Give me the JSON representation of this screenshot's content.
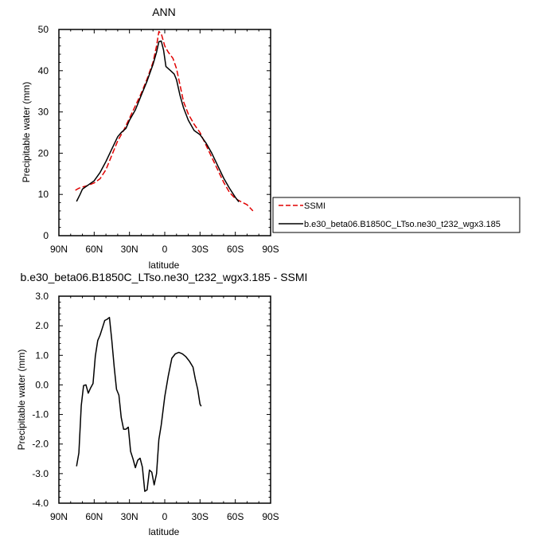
{
  "chart_data": [
    {
      "type": "line",
      "title": "ANN",
      "xlabel": "latitude",
      "ylabel": "Precipitable water (mm)",
      "xlim": [
        -90,
        90
      ],
      "ylim": [
        0,
        50
      ],
      "x_ticks": [
        -90,
        -60,
        -30,
        0,
        30,
        60,
        90
      ],
      "x_tick_labels": [
        "90N",
        "60N",
        "30N",
        "0",
        "30S",
        "60S",
        "90S"
      ],
      "y_ticks": [
        0,
        10,
        20,
        30,
        40,
        50
      ],
      "y_tick_labels": [
        "0",
        "10",
        "20",
        "30",
        "40",
        "50"
      ],
      "legend_position": "right",
      "series": [
        {
          "name": "SSMI",
          "color": "#e00000",
          "dash": "dashed",
          "points": [
            [
              -76,
              11
            ],
            [
              -73,
              11.5
            ],
            [
              -70,
              11.8
            ],
            [
              -65,
              12.2
            ],
            [
              -60,
              12.8
            ],
            [
              -55,
              13.8
            ],
            [
              -50,
              16
            ],
            [
              -45,
              19.5
            ],
            [
              -40,
              23
            ],
            [
              -35,
              25.5
            ],
            [
              -30,
              28.5
            ],
            [
              -25,
              31.5
            ],
            [
              -20,
              34.5
            ],
            [
              -15,
              38
            ],
            [
              -10,
              42
            ],
            [
              -7,
              46
            ],
            [
              -5,
              49.5
            ],
            [
              -3,
              49
            ],
            [
              0,
              46
            ],
            [
              3,
              44.5
            ],
            [
              7,
              43
            ],
            [
              10,
              40.5
            ],
            [
              13,
              36.5
            ],
            [
              16,
              32.5
            ],
            [
              20,
              29.5
            ],
            [
              25,
              27
            ],
            [
              30,
              25
            ],
            [
              35,
              22
            ],
            [
              40,
              19
            ],
            [
              45,
              16
            ],
            [
              50,
              13
            ],
            [
              55,
              10.5
            ],
            [
              60,
              9
            ],
            [
              65,
              8.2
            ],
            [
              70,
              7.5
            ],
            [
              75,
              6
            ]
          ]
        },
        {
          "name": "b.e30_beta06.B1850C_LTso.ne30_t232_wgx3.185",
          "color": "#000000",
          "dash": "solid",
          "points": [
            [
              -75,
              8.3
            ],
            [
              -72,
              10
            ],
            [
              -70,
              11.3
            ],
            [
              -65,
              12.3
            ],
            [
              -60,
              13.3
            ],
            [
              -55,
              15.3
            ],
            [
              -50,
              18
            ],
            [
              -45,
              21
            ],
            [
              -40,
              24
            ],
            [
              -37,
              25
            ],
            [
              -33,
              26
            ],
            [
              -30,
              28
            ],
            [
              -25,
              30.5
            ],
            [
              -20,
              34
            ],
            [
              -15,
              37.5
            ],
            [
              -10,
              41.5
            ],
            [
              -7,
              44.5
            ],
            [
              -5,
              47
            ],
            [
              -3,
              47.2
            ],
            [
              -1,
              45
            ],
            [
              1,
              41
            ],
            [
              5,
              40
            ],
            [
              8,
              39.2
            ],
            [
              10,
              37.8
            ],
            [
              13,
              34
            ],
            [
              16,
              31
            ],
            [
              20,
              28
            ],
            [
              25,
              25.5
            ],
            [
              30,
              24.5
            ],
            [
              35,
              22.5
            ],
            [
              40,
              20
            ],
            [
              45,
              17
            ],
            [
              50,
              14
            ],
            [
              55,
              11.5
            ],
            [
              60,
              9.3
            ],
            [
              63,
              8.2
            ]
          ]
        }
      ]
    },
    {
      "type": "line",
      "title": "b.e30_beta06.B1850C_LTso.ne30_t232_wgx3.185 - SSMI",
      "xlabel": "latitude",
      "ylabel": "Precipitable water (mm)",
      "xlim": [
        -90,
        90
      ],
      "ylim": [
        -4,
        3
      ],
      "x_ticks": [
        -90,
        -60,
        -30,
        0,
        30,
        60,
        90
      ],
      "x_tick_labels": [
        "90N",
        "60N",
        "30N",
        "0",
        "30S",
        "60S",
        "90S"
      ],
      "y_ticks": [
        -4,
        -3,
        -2,
        -1,
        0,
        1,
        2,
        3
      ],
      "y_tick_labels": [
        "-4.0",
        "-3.0",
        "-2.0",
        "-1.0",
        "0.0",
        "1.0",
        "2.0",
        "3.0"
      ],
      "series": [
        {
          "color": "#000000",
          "dash": "solid",
          "points": [
            [
              -75,
              -2.75
            ],
            [
              -73,
              -2.3
            ],
            [
              -71,
              -0.7
            ],
            [
              -69,
              -0.02
            ],
            [
              -67,
              0.0
            ],
            [
              -65,
              -0.28
            ],
            [
              -63,
              -0.1
            ],
            [
              -61,
              0.05
            ],
            [
              -59,
              0.98
            ],
            [
              -57,
              1.5
            ],
            [
              -55,
              1.68
            ],
            [
              -53,
              1.93
            ],
            [
              -51,
              2.18
            ],
            [
              -49,
              2.22
            ],
            [
              -47,
              2.28
            ],
            [
              -45,
              1.5
            ],
            [
              -43,
              0.6
            ],
            [
              -41,
              -0.15
            ],
            [
              -39,
              -0.35
            ],
            [
              -37,
              -1.1
            ],
            [
              -35,
              -1.5
            ],
            [
              -33,
              -1.5
            ],
            [
              -31,
              -1.43
            ],
            [
              -29,
              -2.25
            ],
            [
              -27,
              -2.5
            ],
            [
              -25,
              -2.8
            ],
            [
              -23,
              -2.55
            ],
            [
              -21,
              -2.48
            ],
            [
              -19,
              -2.78
            ],
            [
              -17,
              -3.6
            ],
            [
              -15,
              -3.55
            ],
            [
              -13,
              -2.88
            ],
            [
              -11,
              -2.95
            ],
            [
              -9,
              -3.38
            ],
            [
              -7,
              -3.0
            ],
            [
              -5,
              -1.85
            ],
            [
              -3,
              -1.35
            ],
            [
              0,
              -0.4
            ],
            [
              3,
              0.3
            ],
            [
              6,
              0.9
            ],
            [
              9,
              1.05
            ],
            [
              12,
              1.1
            ],
            [
              15,
              1.05
            ],
            [
              18,
              0.95
            ],
            [
              21,
              0.8
            ],
            [
              24,
              0.6
            ],
            [
              26,
              0.2
            ],
            [
              28,
              -0.15
            ],
            [
              30,
              -0.65
            ],
            [
              31,
              -0.72
            ]
          ]
        }
      ]
    }
  ]
}
